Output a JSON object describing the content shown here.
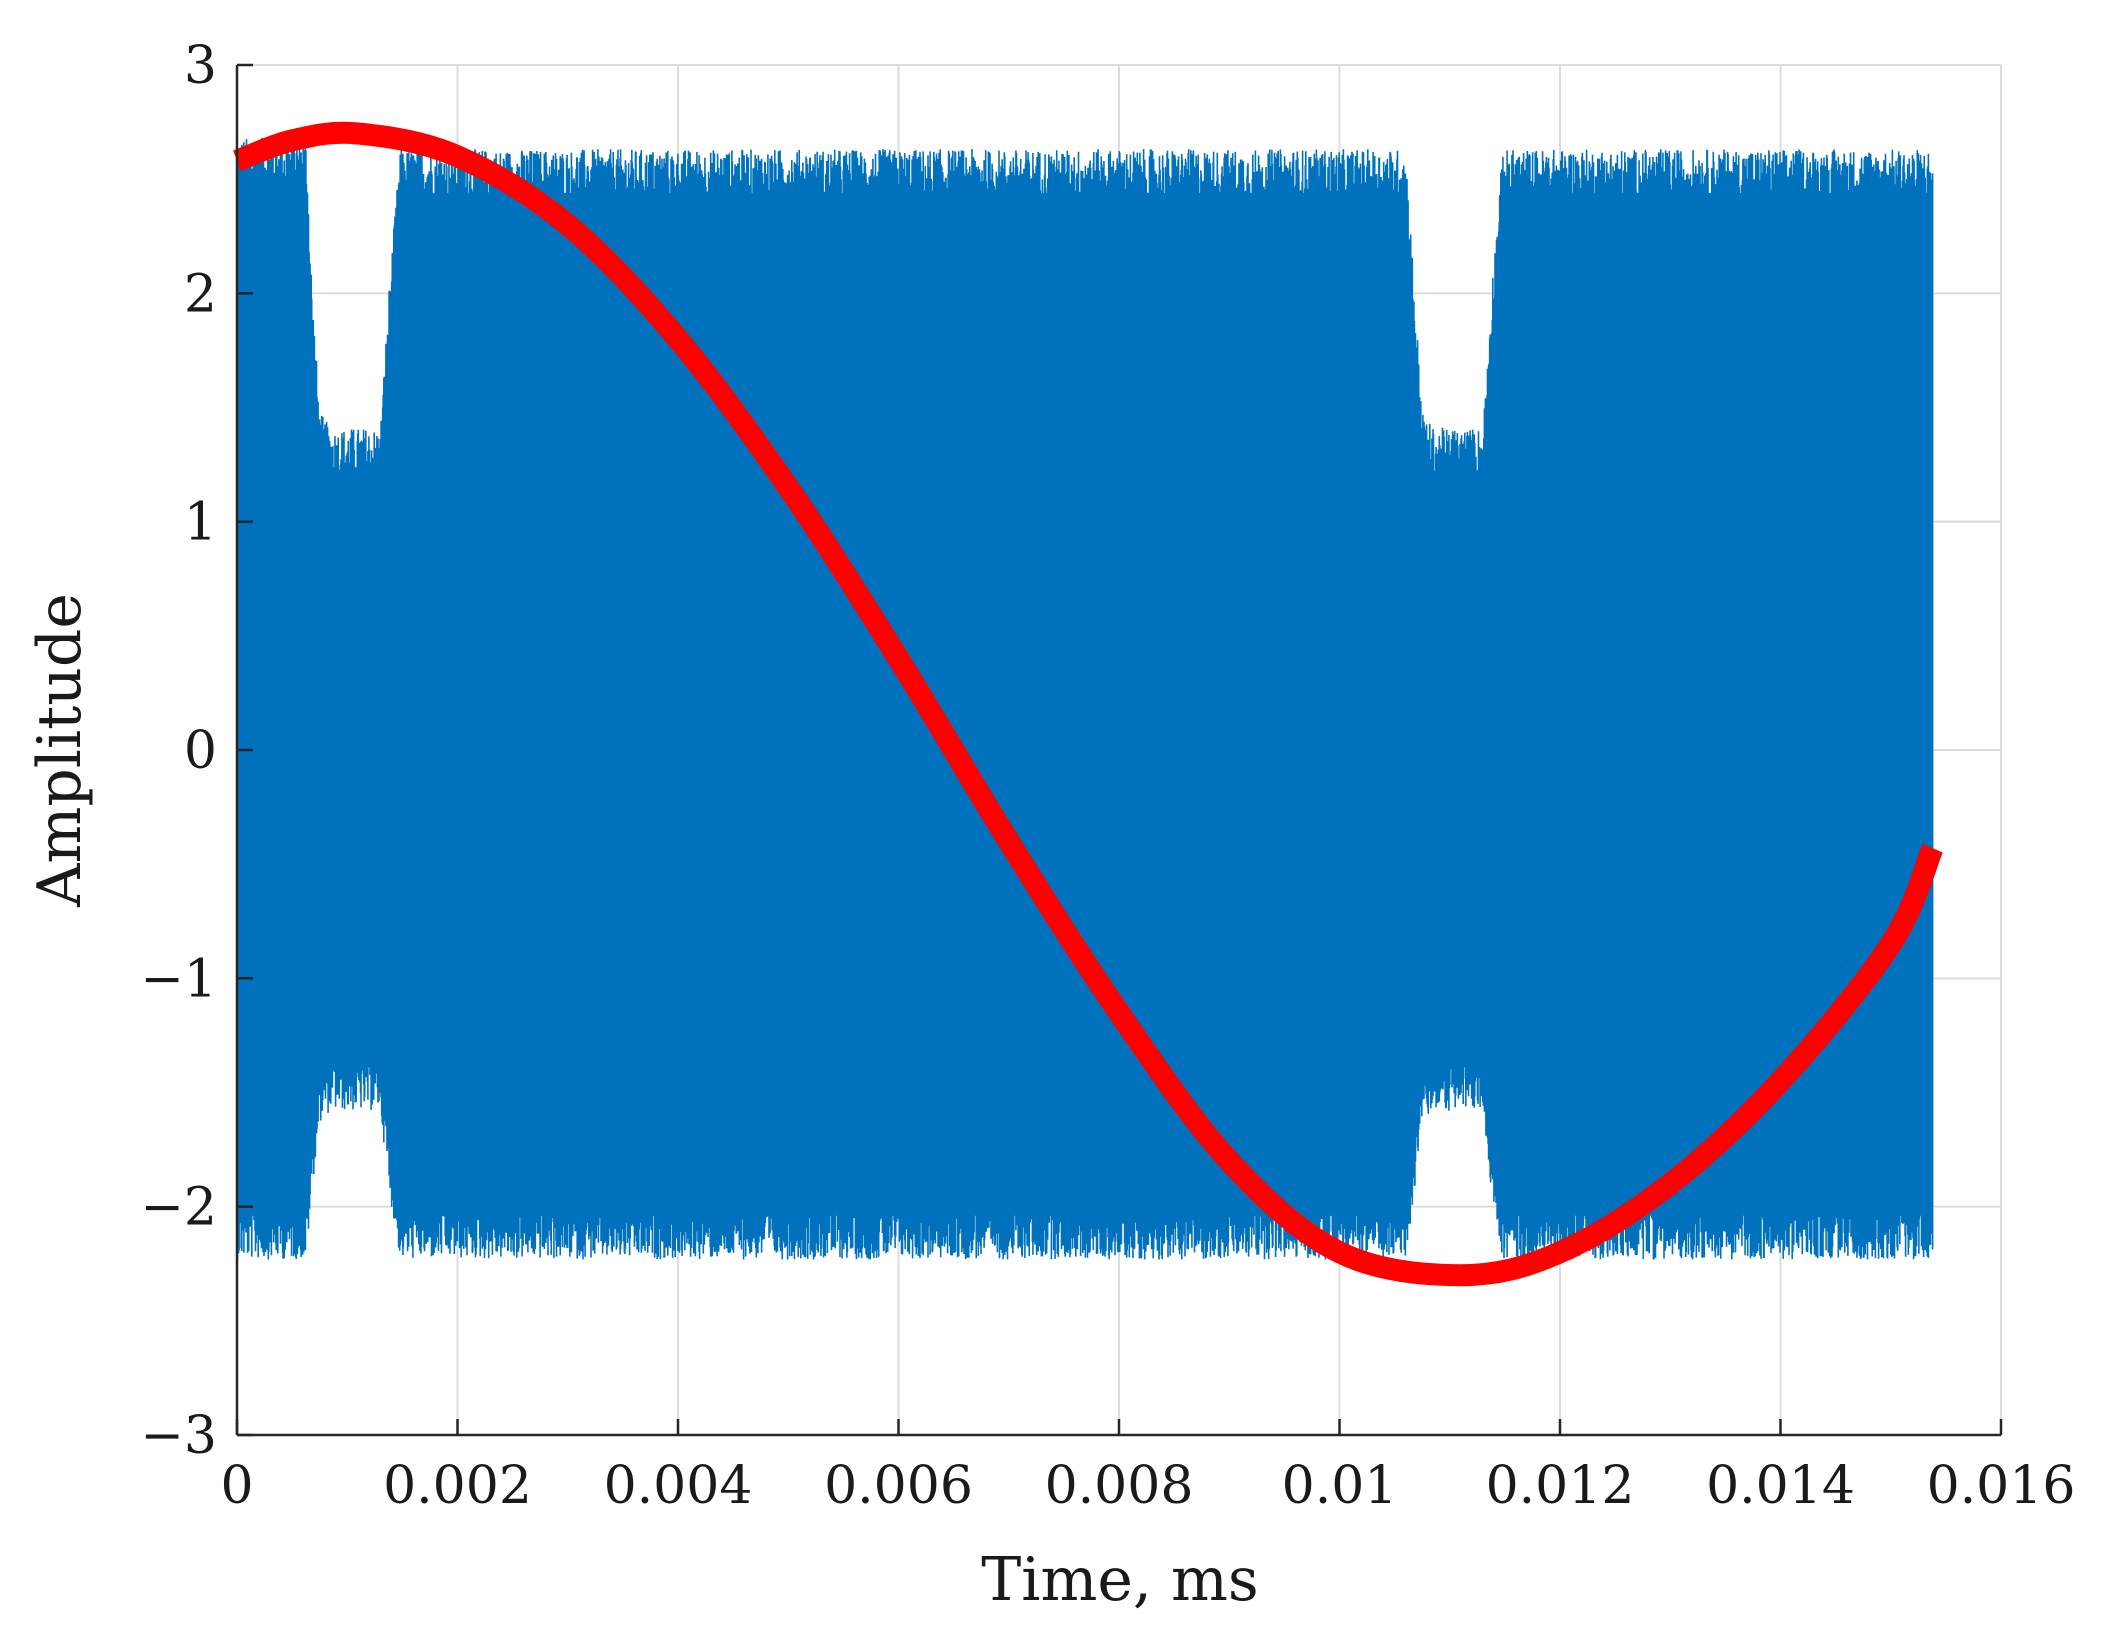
{
  "chart_data": {
    "type": "line",
    "title": "",
    "xlabel": "Time, ms",
    "ylabel": "Amplitude",
    "xlim": [
      0,
      0.016
    ],
    "ylim": [
      -3,
      3
    ],
    "grid": true,
    "legend": "none",
    "x_ticks": [
      0,
      0.002,
      0.004,
      0.006,
      0.008,
      0.01,
      0.012,
      0.014,
      0.016
    ],
    "x_tick_labels": [
      "0",
      "0.002",
      "0.004",
      "0.006",
      "0.008",
      "0.01",
      "0.012",
      "0.014",
      "0.016"
    ],
    "y_ticks": [
      -3,
      -2,
      -1,
      0,
      1,
      2,
      3
    ],
    "y_tick_labels": [
      "−3",
      "−2",
      "−1",
      "0",
      "1",
      "2",
      "3"
    ],
    "series": [
      {
        "color": "#0072bd",
        "style": "dense oscillating signal",
        "x_range": [
          0,
          0.01538
        ],
        "envelope_upper": [
          [
            0,
            2.55
          ],
          [
            0.00063,
            2.55
          ],
          [
            0.00068,
            1.9
          ],
          [
            0.00075,
            1.35
          ],
          [
            0.00085,
            1.28
          ],
          [
            0.0013,
            1.28
          ],
          [
            0.00138,
            1.9
          ],
          [
            0.00148,
            2.5
          ],
          [
            0.0106,
            2.5
          ],
          [
            0.01068,
            1.9
          ],
          [
            0.01075,
            1.35
          ],
          [
            0.01085,
            1.28
          ],
          [
            0.0113,
            1.28
          ],
          [
            0.01138,
            1.9
          ],
          [
            0.01148,
            2.5
          ],
          [
            0.01538,
            2.5
          ]
        ],
        "envelope_lower": [
          [
            0,
            -2.1
          ],
          [
            0.00063,
            -2.1
          ],
          [
            0.00068,
            -1.8
          ],
          [
            0.00075,
            -1.5
          ],
          [
            0.00085,
            -1.45
          ],
          [
            0.0013,
            -1.45
          ],
          [
            0.00138,
            -1.8
          ],
          [
            0.00148,
            -2.1
          ],
          [
            0.0106,
            -2.1
          ],
          [
            0.01068,
            -1.8
          ],
          [
            0.01075,
            -1.5
          ],
          [
            0.01085,
            -1.45
          ],
          [
            0.0113,
            -1.45
          ],
          [
            0.01138,
            -1.8
          ],
          [
            0.01148,
            -2.1
          ],
          [
            0.01538,
            -2.1
          ]
        ],
        "noise_amplitude": 0.12
      },
      {
        "color": "#ff0000",
        "style": "thick smooth curve",
        "x": [
          0,
          0.0005,
          0.0011,
          0.002,
          0.003,
          0.004,
          0.005,
          0.006,
          0.007,
          0.008,
          0.009,
          0.01,
          0.0111,
          0.012,
          0.013,
          0.014,
          0.015,
          0.01538
        ],
        "y": [
          2.58,
          2.67,
          2.7,
          2.6,
          2.3,
          1.8,
          1.15,
          0.4,
          -0.4,
          -1.15,
          -1.8,
          -2.2,
          -2.3,
          -2.2,
          -1.9,
          -1.45,
          -0.85,
          -0.43
        ]
      }
    ]
  }
}
